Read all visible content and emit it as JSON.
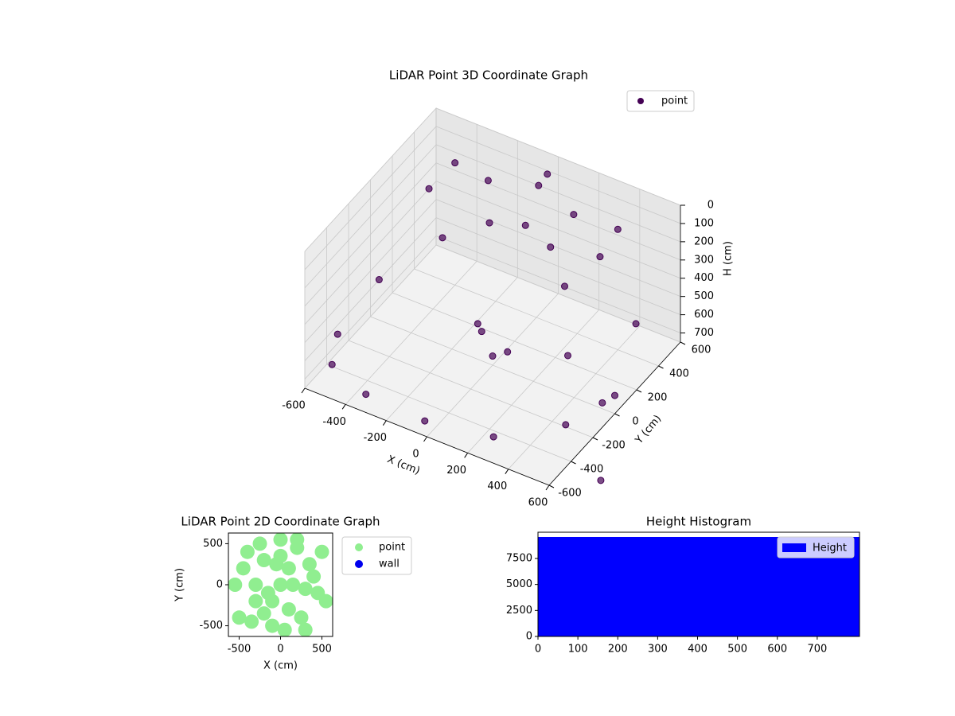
{
  "chart_data": [
    {
      "type": "scatter3d",
      "title": "LiDAR Point 3D Coordinate Graph",
      "xlabel": "X (cm)",
      "ylabel": "Y (cm)",
      "zlabel": "H (cm)",
      "xlim": [
        -600,
        600
      ],
      "ylim": [
        -600,
        600
      ],
      "zlim": [
        0,
        750
      ],
      "zinverted": true,
      "xticks": [
        -600,
        -400,
        -200,
        0,
        200,
        400,
        600
      ],
      "yticks": [
        -600,
        -400,
        -200,
        0,
        200,
        400,
        600
      ],
      "zticks": [
        0,
        100,
        200,
        300,
        400,
        500,
        600,
        700
      ],
      "grid": true,
      "legend": "upper right",
      "series": [
        {
          "name": "point",
          "color": "#440154",
          "x": [
            -600,
            -520,
            -300,
            0,
            300,
            520,
            600,
            -420,
            -210,
            0,
            210,
            420,
            -300,
            -150,
            0,
            150,
            300,
            -400,
            0,
            400,
            -100,
            0,
            100,
            0,
            -450,
            450,
            700,
            650,
            800
          ],
          "y": [
            -300,
            -500,
            -600,
            -620,
            -550,
            -300,
            0,
            200,
            350,
            420,
            350,
            200,
            100,
            250,
            300,
            250,
            100,
            400,
            500,
            400,
            50,
            0,
            -50,
            -100,
            -200,
            -150,
            -300,
            100,
            -500
          ],
          "z": [
            650,
            650,
            650,
            650,
            650,
            650,
            650,
            100,
            60,
            40,
            60,
            100,
            250,
            200,
            180,
            200,
            250,
            80,
            30,
            90,
            600,
            700,
            600,
            500,
            350,
            400,
            450,
            300,
            700
          ]
        }
      ]
    },
    {
      "type": "scatter",
      "title": "LiDAR Point 2D Coordinate Graph",
      "xlabel": "X (cm)",
      "ylabel": "Y (cm)",
      "xlim": [
        -630,
        630
      ],
      "ylim": [
        -630,
        630
      ],
      "xticks": [
        -500,
        0,
        500
      ],
      "yticks": [
        -500,
        0,
        500
      ],
      "legend": "outside right",
      "series": [
        {
          "name": "point",
          "color": "#90ee90",
          "x": [
            -550,
            -500,
            -400,
            -300,
            -200,
            -100,
            0,
            100,
            200,
            300,
            400,
            500,
            550,
            -450,
            -350,
            -250,
            -150,
            -50,
            50,
            150,
            250,
            350,
            450,
            -300,
            0,
            300,
            -100,
            100,
            0,
            -200,
            200
          ],
          "y": [
            0,
            -400,
            400,
            -200,
            300,
            -500,
            550,
            -300,
            450,
            -550,
            100,
            400,
            -200,
            200,
            -450,
            500,
            -100,
            250,
            -550,
            0,
            -400,
            250,
            -100,
            0,
            0,
            -50,
            -200,
            200,
            350,
            -350,
            550
          ]
        },
        {
          "name": "wall",
          "color": "#0000ee",
          "x": [],
          "y": []
        }
      ]
    },
    {
      "type": "histogram",
      "title": "Height Histogram",
      "bins": [
        0,
        806
      ],
      "counts": [
        9565
      ],
      "color": "#0000ff",
      "name": "Height",
      "xlim": [
        0,
        806
      ],
      "ylim": [
        0,
        10023
      ],
      "xticks": [
        0,
        100,
        200,
        300,
        400,
        500,
        600,
        700
      ],
      "yticks": [
        0,
        2500,
        5000,
        7500
      ],
      "legend": "upper right"
    }
  ]
}
